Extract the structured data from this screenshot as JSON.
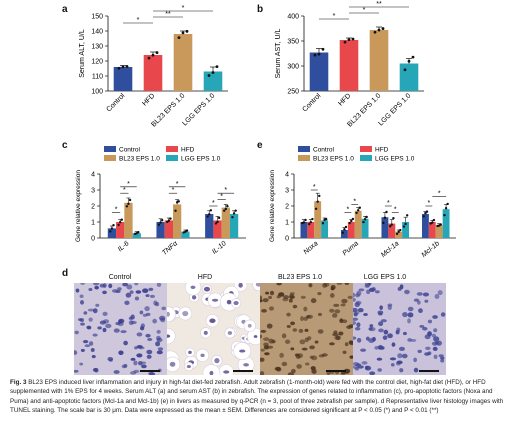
{
  "panels": {
    "a": "a",
    "b": "b",
    "c": "c",
    "d": "d",
    "e": "e"
  },
  "colors": {
    "control": "#2f4f9e",
    "hfd": "#e8474b",
    "bl23": "#c8995a",
    "lgg": "#27a6b8",
    "dots": "#111111"
  },
  "chart_data": [
    {
      "id": "a",
      "type": "bar",
      "categories": [
        "Control",
        "HFD",
        "BL23 EPS 1.0",
        "LGG EPS 1.0"
      ],
      "values": [
        116,
        124,
        138,
        113
      ],
      "errors": [
        1,
        2,
        2,
        3
      ],
      "ylabel": "Serum ALT, U/L",
      "ylim": [
        100,
        150
      ],
      "yticks": [
        100,
        110,
        120,
        130,
        140,
        150
      ],
      "sig": [
        {
          "from": 0,
          "to": 1,
          "label": "*"
        },
        {
          "from": 1,
          "to": 2,
          "label": "**"
        },
        {
          "from": 1,
          "to": 3,
          "label": "*"
        }
      ]
    },
    {
      "id": "b",
      "type": "bar",
      "categories": [
        "Control",
        "HFD",
        "BL23 EPS 1.0",
        "LGG EPS 1.0"
      ],
      "values": [
        327,
        352,
        372,
        305
      ],
      "errors": [
        8,
        4,
        6,
        10
      ],
      "ylabel": "Serum AST, U/L",
      "ylim": [
        250,
        400
      ],
      "yticks": [
        250,
        300,
        350,
        400
      ],
      "sig": [
        {
          "from": 0,
          "to": 1,
          "label": "*"
        },
        {
          "from": 1,
          "to": 2,
          "label": "*"
        },
        {
          "from": 1,
          "to": 3,
          "label": "**"
        }
      ]
    },
    {
      "id": "c",
      "type": "bar",
      "categories": [
        "IL-6",
        "TNFα",
        "IL-10"
      ],
      "series": [
        {
          "name": "Control",
          "values": [
            0.6,
            1.0,
            1.5
          ],
          "errors": [
            0.15,
            0.2,
            0.2
          ]
        },
        {
          "name": "HFD",
          "values": [
            1.0,
            1.1,
            1.1
          ],
          "errors": [
            0.15,
            0.15,
            0.25
          ]
        },
        {
          "name": "BL23 EPS 1.0",
          "values": [
            2.2,
            2.1,
            1.9
          ],
          "errors": [
            0.3,
            0.3,
            0.2
          ]
        },
        {
          "name": "LGG EPS 1.0",
          "values": [
            0.3,
            0.4,
            1.5
          ],
          "errors": [
            0.1,
            0.1,
            0.2
          ]
        }
      ],
      "ylabel": "Gene relative expression",
      "ylim": [
        0,
        4
      ],
      "yticks": [
        0,
        1,
        2,
        3,
        4
      ],
      "sig": [
        {
          "group": 0,
          "from": 0,
          "to": 1,
          "level": 1.6,
          "label": "*"
        },
        {
          "group": 0,
          "from": 1,
          "to": 2,
          "level": 2.8,
          "label": "*"
        },
        {
          "group": 0,
          "from": 1,
          "to": 3,
          "level": 3.2,
          "label": "*"
        },
        {
          "group": 1,
          "from": 1,
          "to": 2,
          "level": 2.8,
          "label": "*"
        },
        {
          "group": 1,
          "from": 1,
          "to": 3,
          "level": 3.2,
          "label": "*"
        },
        {
          "group": 2,
          "from": 0,
          "to": 1,
          "level": 2.0,
          "label": "*"
        },
        {
          "group": 2,
          "from": 1,
          "to": 2,
          "level": 2.4,
          "label": "*"
        },
        {
          "group": 2,
          "from": 1,
          "to": 3,
          "level": 2.8,
          "label": "*"
        }
      ],
      "legend": "top"
    },
    {
      "id": "e",
      "type": "bar",
      "categories": [
        "Noxa",
        "Puma",
        "Mcl-1a",
        "Mcl-1b"
      ],
      "series": [
        {
          "name": "Control",
          "values": [
            1.0,
            0.5,
            1.3,
            1.5
          ],
          "errors": [
            0.15,
            0.15,
            0.3,
            0.15
          ]
        },
        {
          "name": "HFD",
          "values": [
            1.0,
            1.0,
            0.9,
            1.0
          ],
          "errors": [
            0.15,
            0.15,
            0.25,
            0.1
          ]
        },
        {
          "name": "BL23 EPS 1.0",
          "values": [
            2.3,
            1.7,
            0.4,
            0.8
          ],
          "errors": [
            0.5,
            0.2,
            0.1,
            0.1
          ]
        },
        {
          "name": "LGG EPS 1.0",
          "values": [
            1.1,
            1.2,
            1.0,
            1.8
          ],
          "errors": [
            0.15,
            0.15,
            0.3,
            0.3
          ]
        }
      ],
      "ylabel": "Gene relative expression",
      "ylim": [
        0,
        4
      ],
      "yticks": [
        0,
        1,
        2,
        3,
        4
      ],
      "sig": [
        {
          "group": 0,
          "from": 1,
          "to": 2,
          "level": 3.0,
          "label": "*"
        },
        {
          "group": 1,
          "from": 1,
          "to": 2,
          "level": 2.1,
          "label": "*"
        },
        {
          "group": 1,
          "from": 0,
          "to": 1,
          "level": 1.6,
          "label": "*"
        },
        {
          "group": 2,
          "from": 0,
          "to": 1,
          "level": 2.0,
          "label": "*"
        },
        {
          "group": 2,
          "from": 1,
          "to": 2,
          "level": 1.6,
          "label": "*"
        },
        {
          "group": 3,
          "from": 1,
          "to": 3,
          "level": 2.6,
          "label": "*"
        },
        {
          "group": 3,
          "from": 0,
          "to": 1,
          "level": 2.0,
          "label": "*"
        }
      ],
      "legend": "top"
    }
  ],
  "histology": [
    {
      "label": "Control",
      "tone": "control"
    },
    {
      "label": "HFD",
      "tone": "hfd"
    },
    {
      "label": "BL23 EPS 1.0",
      "tone": "bl23"
    },
    {
      "label": "LGG EPS 1.0",
      "tone": "lgg"
    }
  ],
  "caption": {
    "label": "Fig. 3",
    "text": "BL23 EPS induced liver inflammation and injury in high-fat diet-fed zebrafish. Adult zebrafish (1-month-old) were fed with the control diet, high-fat diet (HFD), or HFD supplemented with 1% EPS for 4 weeks. Serum ALT (a) and serum AST (b) in zebrafish. The expression of genes related to inflammation (c), pro-apoptotic factors (Noxa and Puma) and anti-apoptotic factors (Mcl-1a and Mcl-1b) (e) in livers as measured by q-PCR (n = 3, pool of three zebrafish per sample). d Representative liver histology images with TUNEL staining. The scale bar is 30 μm. Data were expressed as the mean ± SEM. Differences are considered significant at P < 0.05 (*) and P < 0.01 (**)"
  }
}
